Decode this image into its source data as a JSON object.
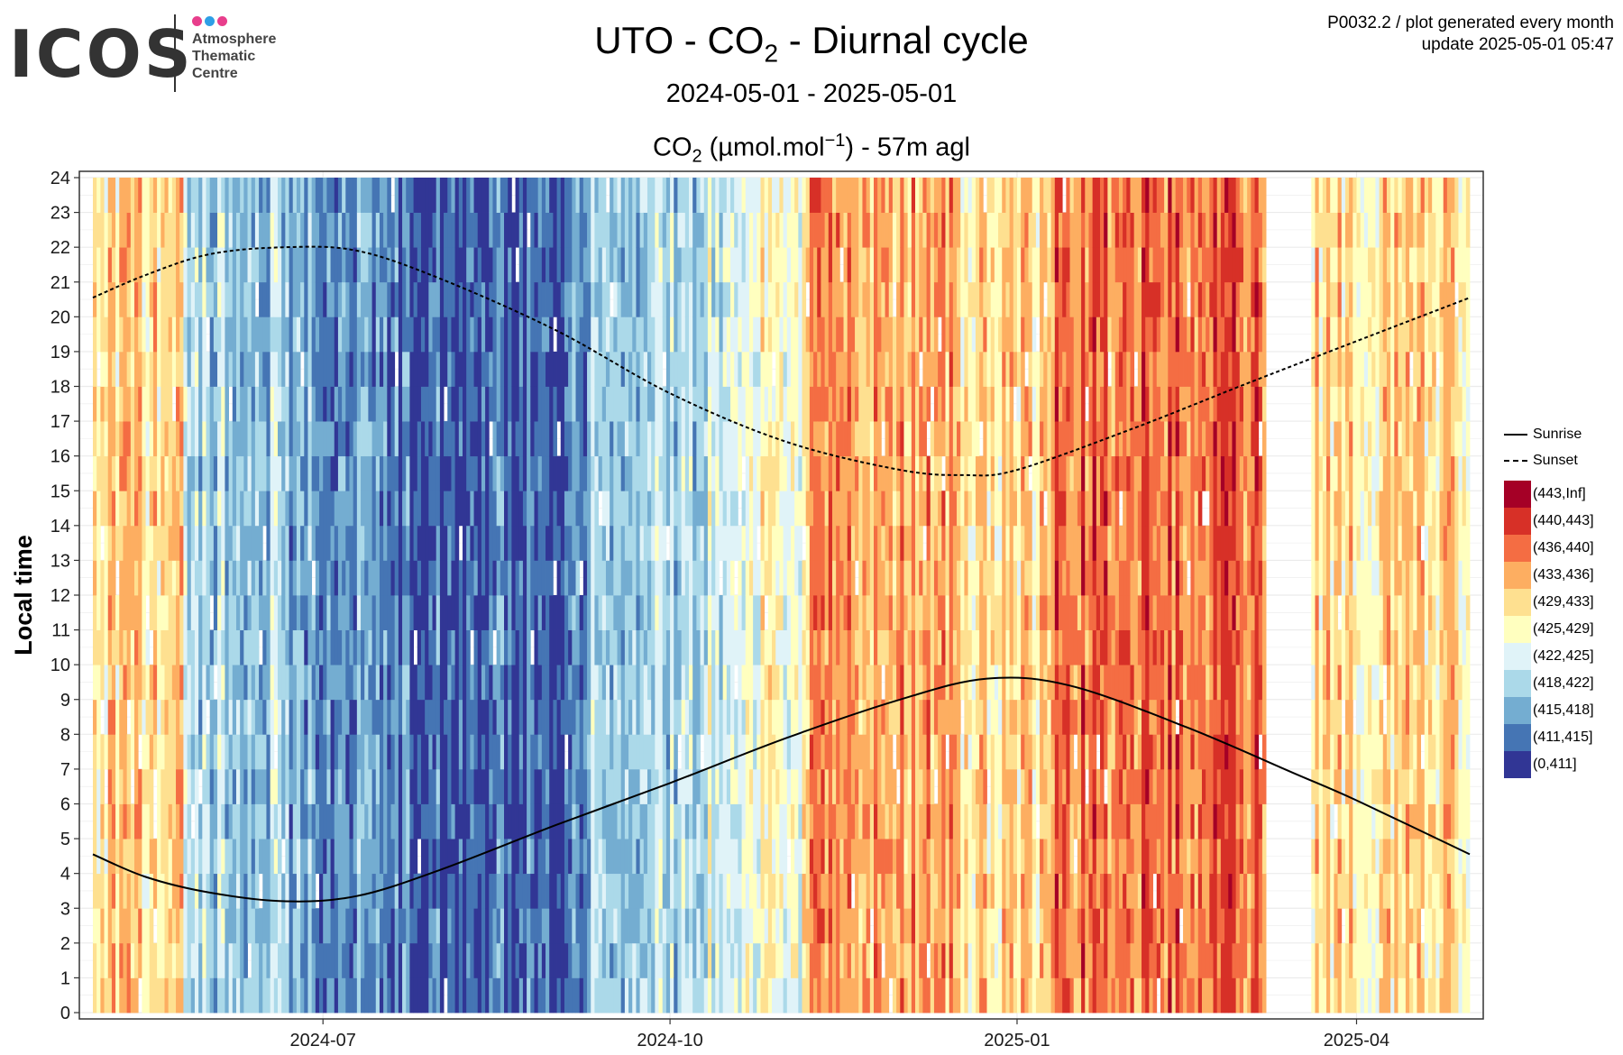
{
  "logo": {
    "wordmark": "ICOS",
    "lines": [
      "Atmosphere",
      "Thematic",
      "Centre"
    ],
    "dot_colors": [
      "#e83e8c",
      "#2e9fe6",
      "#e83e8c"
    ]
  },
  "header": {
    "title_main": "UTO - CO",
    "title_sub": "2",
    "title_rest": " - Diurnal cycle",
    "date_range": "2024-05-01 - 2025-05-01",
    "unit_prefix": "CO",
    "unit_sub": "2",
    "unit_mid": " (µmol.mol",
    "unit_sup": "−1",
    "unit_rest": ") - 57m agl"
  },
  "meta": {
    "line1": "P0032.2 / plot generated every month",
    "line2": "update  2025-05-01 05:47"
  },
  "chart_data": {
    "type": "heatmap",
    "title": "UTO - CO2 - Diurnal cycle",
    "subtitle": "2024-05-01 - 2025-05-01",
    "ylabel": "Local time",
    "xlim": [
      "2024-05-01",
      "2025-05-01"
    ],
    "ylim": [
      0,
      24
    ],
    "y_ticks": [
      0,
      1,
      2,
      3,
      4,
      5,
      6,
      7,
      8,
      9,
      10,
      11,
      12,
      13,
      14,
      15,
      16,
      17,
      18,
      19,
      20,
      21,
      22,
      23,
      24
    ],
    "x_ticks": [
      "2024-07",
      "2024-10",
      "2025-01",
      "2025-04"
    ],
    "grid": true,
    "legend_position": "right",
    "lines": [
      {
        "name": "Sunrise",
        "style": "solid",
        "color": "#000000",
        "points": [
          [
            "2024-05-01",
            4.55
          ],
          [
            "2024-05-15",
            3.9
          ],
          [
            "2024-06-01",
            3.45
          ],
          [
            "2024-06-21",
            3.2
          ],
          [
            "2024-07-10",
            3.35
          ],
          [
            "2024-08-01",
            4.1
          ],
          [
            "2024-09-01",
            5.4
          ],
          [
            "2024-10-01",
            6.6
          ],
          [
            "2024-11-01",
            7.9
          ],
          [
            "2024-12-01",
            9.0
          ],
          [
            "2024-12-24",
            9.6
          ],
          [
            "2025-01-15",
            9.4
          ],
          [
            "2025-02-15",
            8.2
          ],
          [
            "2025-03-15",
            6.9
          ],
          [
            "2025-04-01",
            6.1
          ],
          [
            "2025-05-01",
            4.55
          ]
        ]
      },
      {
        "name": "Sunset",
        "style": "dashed",
        "color": "#000000",
        "points": [
          [
            "2024-05-01",
            20.55
          ],
          [
            "2024-05-15",
            21.2
          ],
          [
            "2024-06-01",
            21.8
          ],
          [
            "2024-06-21",
            22.0
          ],
          [
            "2024-07-10",
            21.9
          ],
          [
            "2024-08-01",
            21.1
          ],
          [
            "2024-09-01",
            19.6
          ],
          [
            "2024-10-01",
            17.8
          ],
          [
            "2024-11-01",
            16.4
          ],
          [
            "2024-12-01",
            15.6
          ],
          [
            "2024-12-18",
            15.45
          ],
          [
            "2025-01-01",
            15.6
          ],
          [
            "2025-02-01",
            16.8
          ],
          [
            "2025-03-01",
            18.0
          ],
          [
            "2025-04-01",
            19.3
          ],
          [
            "2025-05-01",
            20.55
          ]
        ]
      }
    ],
    "color_scale": [
      {
        "label": "(443,Inf]",
        "color": "#a50026"
      },
      {
        "label": "(440,443]",
        "color": "#d73027"
      },
      {
        "label": "(436,440]",
        "color": "#f46d43"
      },
      {
        "label": "(433,436]",
        "color": "#fdae61"
      },
      {
        "label": "(429,433]",
        "color": "#fee090"
      },
      {
        "label": "(425,429]",
        "color": "#ffffbf"
      },
      {
        "label": "(422,425]",
        "color": "#e0f3f8"
      },
      {
        "label": "(418,422]",
        "color": "#abd9e9"
      },
      {
        "label": "(415,418]",
        "color": "#74add1"
      },
      {
        "label": "(411,415]",
        "color": "#4575b4"
      },
      {
        "label": "(0,411]",
        "color": "#313695"
      }
    ],
    "dominant_class_by_period": [
      {
        "from": "2024-05-01",
        "to": "2024-05-25",
        "class": "(429,433]"
      },
      {
        "from": "2024-05-25",
        "to": "2024-06-20",
        "class": "(418,422]"
      },
      {
        "from": "2024-06-20",
        "to": "2024-07-15",
        "class": "(415,418]"
      },
      {
        "from": "2024-07-15",
        "to": "2024-08-01",
        "class": "(411,415]"
      },
      {
        "from": "2024-08-01",
        "to": "2024-08-12",
        "class": "(0,411]"
      },
      {
        "from": "2024-08-12",
        "to": "2024-09-10",
        "class": "(411,415]"
      },
      {
        "from": "2024-09-10",
        "to": "2024-10-10",
        "class": "(418,422]"
      },
      {
        "from": "2024-10-10",
        "to": "2024-10-25",
        "class": "(422,425]"
      },
      {
        "from": "2024-10-25",
        "to": "2024-11-05",
        "class": "(425,429]"
      },
      {
        "from": "2024-11-05",
        "to": "2024-12-15",
        "class": "(433,436]"
      },
      {
        "from": "2024-12-15",
        "to": "2025-01-10",
        "class": "(429,433]"
      },
      {
        "from": "2025-01-10",
        "to": "2025-03-08",
        "class": "(436,440]"
      },
      {
        "from": "2025-03-20",
        "to": "2025-05-01",
        "class": "(429,433]"
      }
    ],
    "missing_periods": [
      [
        "2025-03-08",
        "2025-03-20"
      ]
    ]
  }
}
